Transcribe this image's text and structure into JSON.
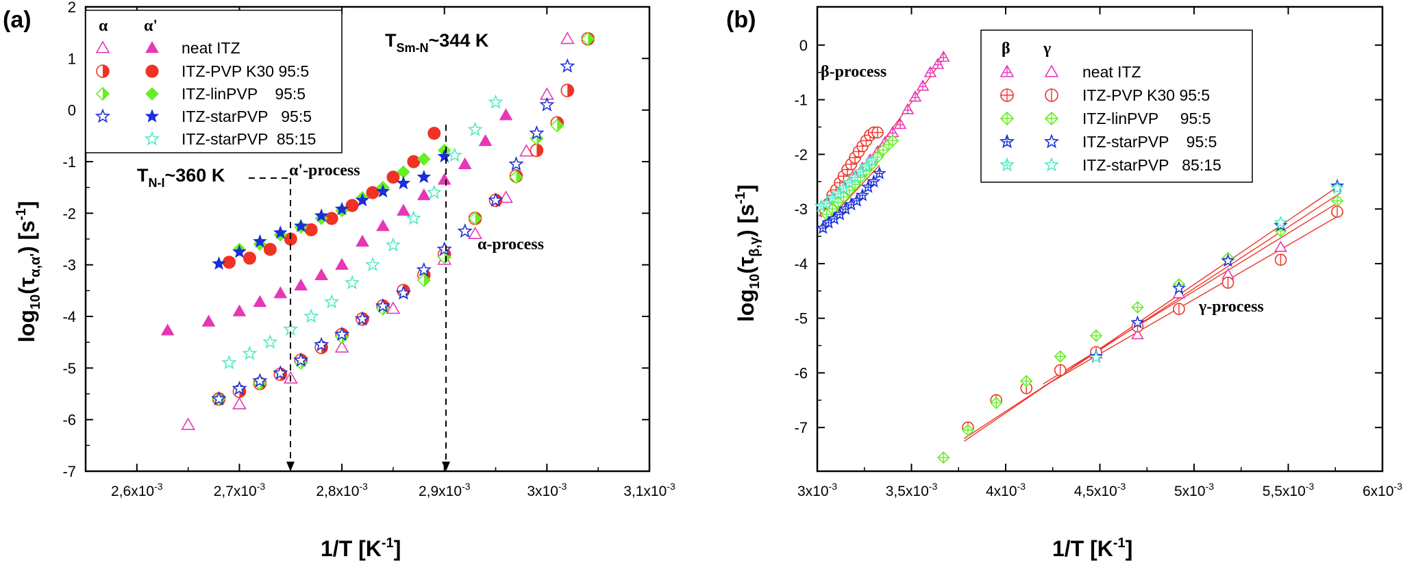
{
  "panel_a": {
    "label": "(a)",
    "xlabel": "1/T [K",
    "xlabel_sup": "-1",
    "xlabel_end": "]",
    "ylabel_pre": "log",
    "ylabel_sub10": "10",
    "ylabel_tau": "(τ",
    "ylabel_sub": "α,α'",
    "ylabel_end": ") [s",
    "ylabel_sup": "-1",
    "ylabel_close": "]",
    "xticks": [
      0.0026,
      0.0027,
      0.0028,
      0.0029,
      0.003,
      0.0031
    ],
    "xtick_labels": [
      "2,6x10",
      "2,7x10",
      "2,8x10",
      "2,9x10",
      "3x10",
      "3,1x10"
    ],
    "xtick_exp": "-3",
    "yticks": [
      -7,
      -6,
      -5,
      -4,
      -3,
      -2,
      -1,
      0,
      1,
      2
    ],
    "legend": {
      "head_alpha": "α",
      "head_alphap": "α'",
      "rows": [
        {
          "name": "neat ITZ",
          "color": "#e637b6"
        },
        {
          "name": "ITZ-PVP K30 95:5",
          "color": "#ee3324"
        },
        {
          "name": "ITZ-linPVP    95:5",
          "color": "#66ee22"
        },
        {
          "name": "ITZ-starPVP   95:5",
          "color": "#1a2fd6"
        },
        {
          "name": "ITZ-starPVP  85:15",
          "color": "#55e8c4"
        }
      ]
    },
    "annotations": {
      "t_smn_pre": "T",
      "t_smn_sub": "Sm-N",
      "t_smn_post": "~344 K",
      "t_ni_pre": "T",
      "t_ni_sub": "N-I",
      "t_ni_post": "~360 K",
      "alpha_prime_process": "α'-process",
      "alpha_process": "α-process"
    }
  },
  "panel_b": {
    "label": "(b)",
    "xlabel": "1/T [K",
    "xlabel_sup": "-1",
    "xlabel_end": "]",
    "ylabel_pre": "log",
    "ylabel_sub10": "10",
    "ylabel_tau": "(τ",
    "ylabel_sub": "β,γ",
    "ylabel_end": ") [s",
    "ylabel_sup": "-1",
    "ylabel_close": "]",
    "xticks": [
      0.003,
      0.0035,
      0.004,
      0.0045,
      0.005,
      0.0055,
      0.006
    ],
    "xtick_labels": [
      "3x10",
      "3,5x10",
      "4x10",
      "4,5x10",
      "5x10",
      "5,5x10",
      "6x10"
    ],
    "xtick_exp": "-3",
    "yticks": [
      -7,
      -6,
      -5,
      -4,
      -3,
      -2,
      -1,
      0
    ],
    "legend": {
      "head_beta": "β",
      "head_gamma": "γ",
      "rows": [
        {
          "name": "neat ITZ",
          "color": "#e637b6"
        },
        {
          "name": "ITZ-PVP K30 95:5",
          "color": "#ee3324"
        },
        {
          "name": "ITZ-linPVP     95:5",
          "color": "#66ee22"
        },
        {
          "name": "ITZ-starPVP    95:5",
          "color": "#1a2fd6"
        },
        {
          "name": "ITZ-starPVP   85:15",
          "color": "#55e8c4"
        }
      ]
    },
    "annotations": {
      "beta_process": "β-process",
      "gamma_process": "γ-process"
    }
  },
  "chart_data": [
    {
      "type": "scatter",
      "title": "(a)",
      "xlabel": "1/T [K-1]",
      "ylabel": "log10(τα,α') [s-1]",
      "xlim": [
        0.00255,
        0.0031
      ],
      "ylim": [
        -7,
        2
      ],
      "series": [
        {
          "name": "neat ITZ α'",
          "process": "alpha_prime",
          "marker": "triangle-filled",
          "color": "#e637b6",
          "x": [
            0.00263,
            0.00267,
            0.0027,
            0.00272,
            0.00274,
            0.00276,
            0.00278,
            0.0028,
            0.00282,
            0.00284,
            0.00286,
            0.00288,
            0.0029,
            0.00292,
            0.00294,
            0.00296
          ],
          "y": [
            -4.27,
            -4.1,
            -3.9,
            -3.72,
            -3.55,
            -3.4,
            -3.2,
            -3.0,
            -2.55,
            -2.25,
            -1.95,
            -1.65,
            -1.35,
            -1.05,
            -0.6,
            -0.1
          ]
        },
        {
          "name": "ITZ-PVP K30 95:5 α'",
          "process": "alpha_prime",
          "marker": "circle-filled",
          "color": "#ee3324",
          "x": [
            0.00269,
            0.00271,
            0.00273,
            0.00275,
            0.00277,
            0.00279,
            0.00281,
            0.00283,
            0.00285,
            0.00287,
            0.00289
          ],
          "y": [
            -2.95,
            -2.87,
            -2.7,
            -2.5,
            -2.32,
            -2.1,
            -1.85,
            -1.6,
            -1.3,
            -1.0,
            -0.45
          ]
        },
        {
          "name": "ITZ-linPVP 95:5 α'",
          "process": "alpha_prime",
          "marker": "diamond-filled",
          "color": "#66ee22",
          "x": [
            0.0027,
            0.00272,
            0.00274,
            0.00276,
            0.00278,
            0.0028,
            0.00282,
            0.00284,
            0.00286,
            0.00288,
            0.0029
          ],
          "y": [
            -2.7,
            -2.6,
            -2.42,
            -2.27,
            -2.1,
            -1.95,
            -1.7,
            -1.5,
            -1.2,
            -0.95,
            -0.78
          ]
        },
        {
          "name": "ITZ-starPVP 95:5 α'",
          "process": "alpha_prime",
          "marker": "star-filled",
          "color": "#1a2fd6",
          "x": [
            0.00268,
            0.0027,
            0.00272,
            0.00274,
            0.00276,
            0.00278,
            0.0028,
            0.00282,
            0.00284,
            0.00286,
            0.00288,
            0.0029
          ],
          "y": [
            -2.98,
            -2.75,
            -2.55,
            -2.38,
            -2.25,
            -2.05,
            -1.92,
            -1.75,
            -1.58,
            -1.42,
            -1.3,
            -0.9
          ]
        },
        {
          "name": "ITZ-starPVP 85:15 α",
          "process": "alpha",
          "marker": "star-open",
          "color": "#55e8c4",
          "x": [
            0.00269,
            0.00271,
            0.00273,
            0.00275,
            0.00277,
            0.00279,
            0.00281,
            0.00283,
            0.00285,
            0.00287,
            0.00289,
            0.00291,
            0.00293,
            0.00295
          ],
          "y": [
            -4.9,
            -4.72,
            -4.5,
            -4.25,
            -4.0,
            -3.72,
            -3.35,
            -3.0,
            -2.62,
            -2.1,
            -1.6,
            -0.88,
            -0.38,
            0.15
          ]
        },
        {
          "name": "neat ITZ α",
          "process": "alpha",
          "marker": "triangle-open",
          "color": "#e637b6",
          "x": [
            0.00265,
            0.0027,
            0.00275,
            0.0028,
            0.00285,
            0.0029,
            0.00293,
            0.00296,
            0.00298,
            0.003,
            0.00302
          ],
          "y": [
            -6.1,
            -5.7,
            -5.2,
            -4.6,
            -3.85,
            -2.9,
            -2.4,
            -1.7,
            -0.8,
            0.3,
            1.38
          ]
        },
        {
          "name": "ITZ-PVP K30 95:5 α",
          "process": "alpha",
          "marker": "circle-half",
          "color": "#ee3324",
          "x": [
            0.00268,
            0.0027,
            0.00272,
            0.00274,
            0.00276,
            0.00278,
            0.0028,
            0.00282,
            0.00284,
            0.00286,
            0.00288,
            0.0029,
            0.00293,
            0.00295,
            0.00297,
            0.00299,
            0.00301,
            0.00302,
            0.00304
          ],
          "y": [
            -5.6,
            -5.45,
            -5.3,
            -5.12,
            -4.85,
            -4.6,
            -4.35,
            -4.05,
            -3.8,
            -3.5,
            -3.2,
            -2.8,
            -2.1,
            -1.75,
            -1.28,
            -0.78,
            -0.25,
            0.38,
            1.38
          ]
        },
        {
          "name": "ITZ-linPVP 95:5 α",
          "process": "alpha",
          "marker": "diamond-half",
          "color": "#66ee22",
          "x": [
            0.00268,
            0.00272,
            0.00276,
            0.0028,
            0.00284,
            0.00288,
            0.0029,
            0.00293,
            0.00297,
            0.00299,
            0.00301,
            0.00304
          ],
          "y": [
            -5.6,
            -5.3,
            -4.9,
            -4.4,
            -3.85,
            -3.3,
            -2.85,
            -2.1,
            -1.3,
            -0.55,
            -0.3,
            1.38
          ]
        },
        {
          "name": "ITZ-starPVP 95:5 α",
          "process": "alpha",
          "marker": "star-open",
          "color": "#1a2fd6",
          "x": [
            0.00268,
            0.0027,
            0.00272,
            0.00274,
            0.00276,
            0.00278,
            0.0028,
            0.00282,
            0.00284,
            0.00286,
            0.00288,
            0.0029,
            0.00292,
            0.00295,
            0.00297,
            0.00299,
            0.003,
            0.00302
          ],
          "y": [
            -5.6,
            -5.4,
            -5.25,
            -5.1,
            -4.85,
            -4.55,
            -4.35,
            -4.05,
            -3.8,
            -3.55,
            -3.1,
            -2.7,
            -2.35,
            -1.75,
            -1.05,
            -0.45,
            0.1,
            0.85
          ]
        }
      ],
      "annotations": [
        {
          "text": "TSm-N~344 K",
          "x": 0.0029,
          "kind": "vertical-dashed-arrow"
        },
        {
          "text": "TN-I~360 K",
          "x": 0.00275,
          "kind": "vertical-dashed-arrow"
        },
        {
          "text": "α'-process"
        },
        {
          "text": "α-process"
        }
      ]
    },
    {
      "type": "scatter",
      "title": "(b)",
      "xlabel": "1/T [K-1]",
      "ylabel": "log10(τβ,γ) [s-1]",
      "xlim": [
        0.003,
        0.006
      ],
      "ylim": [
        -7.8,
        0.7
      ],
      "series": [
        {
          "name": "neat ITZ β",
          "process": "beta",
          "marker": "triangle-cross",
          "color": "#e637b6",
          "x": [
            0.00304,
            0.00307,
            0.0031,
            0.00313,
            0.00316,
            0.0032,
            0.00324,
            0.00328,
            0.00332,
            0.00336,
            0.0034,
            0.00344,
            0.00348,
            0.00352,
            0.00356,
            0.0036,
            0.00364,
            0.00367
          ],
          "y": [
            -3.05,
            -2.95,
            -2.8,
            -2.7,
            -2.55,
            -2.4,
            -2.25,
            -2.1,
            -1.95,
            -1.78,
            -1.6,
            -1.45,
            -1.18,
            -0.95,
            -0.75,
            -0.5,
            -0.35,
            -0.22
          ]
        },
        {
          "name": "ITZ-PVP K30 95:5 β",
          "process": "beta",
          "marker": "circle-cross",
          "color": "#ee3324",
          "x": [
            0.00304,
            0.00306,
            0.00308,
            0.0031,
            0.00312,
            0.00314,
            0.00316,
            0.00318,
            0.0032,
            0.00322,
            0.00324,
            0.00326,
            0.00328,
            0.0033,
            0.00332
          ],
          "y": [
            -3.0,
            -2.9,
            -2.75,
            -2.65,
            -2.52,
            -2.4,
            -2.28,
            -2.18,
            -2.06,
            -1.95,
            -1.85,
            -1.75,
            -1.65,
            -1.6,
            -1.6
          ]
        },
        {
          "name": "ITZ-linPVP 95:5 β",
          "process": "beta",
          "marker": "diamond-cross",
          "color": "#66ee22",
          "x": [
            0.00305,
            0.00308,
            0.00311,
            0.00314,
            0.00317,
            0.0032,
            0.00323,
            0.00326,
            0.00329,
            0.00332,
            0.00335,
            0.00338,
            0.0034
          ],
          "y": [
            -3.1,
            -3.0,
            -2.88,
            -2.78,
            -2.66,
            -2.55,
            -2.42,
            -2.3,
            -2.18,
            -2.05,
            -1.92,
            -1.82,
            -1.75
          ]
        },
        {
          "name": "ITZ-starPVP 95:5 β",
          "process": "beta",
          "marker": "star-cross",
          "color": "#1a2fd6",
          "x": [
            0.00303,
            0.00306,
            0.00309,
            0.00312,
            0.00315,
            0.00318,
            0.00321,
            0.00324,
            0.00327,
            0.0033,
            0.00333
          ],
          "y": [
            -3.35,
            -3.25,
            -3.18,
            -3.1,
            -3.0,
            -2.92,
            -2.85,
            -2.75,
            -2.6,
            -2.5,
            -2.35
          ]
        },
        {
          "name": "ITZ-starPVP 85:15 β",
          "process": "beta",
          "marker": "star-cross",
          "color": "#55e8c4",
          "x": [
            0.00302,
            0.00305,
            0.00308,
            0.00311,
            0.00314,
            0.00317,
            0.0032,
            0.00323,
            0.00326,
            0.00329
          ],
          "y": [
            -2.95,
            -2.9,
            -2.8,
            -2.72,
            -2.62,
            -2.52,
            -2.42,
            -2.32,
            -2.22,
            -2.12
          ]
        },
        {
          "name": "neat ITZ γ",
          "process": "gamma",
          "marker": "triangle-open",
          "color": "#e637b6",
          "x": [
            0.00448,
            0.0047,
            0.00492,
            0.00518,
            0.00546,
            0.00576
          ],
          "y": [
            -5.65,
            -5.3,
            -4.55,
            -4.2,
            -3.7,
            -3.0
          ]
        },
        {
          "name": "ITZ-PVP K30 95:5 γ",
          "process": "gamma",
          "marker": "circle-open",
          "color": "#ee3324",
          "x": [
            0.0038,
            0.00395,
            0.00411,
            0.00429,
            0.00448,
            0.0047,
            0.00492,
            0.00518,
            0.00546,
            0.00576
          ],
          "y": [
            -7.0,
            -6.5,
            -6.28,
            -5.95,
            -5.62,
            -5.15,
            -4.83,
            -4.35,
            -3.93,
            -3.05
          ]
        },
        {
          "name": "ITZ-linPVP 95:5 γ",
          "process": "gamma",
          "marker": "diamond-open",
          "color": "#66ee22",
          "x": [
            0.00367,
            0.0038,
            0.00395,
            0.00411,
            0.00429,
            0.00448,
            0.0047,
            0.00492,
            0.00518,
            0.00546,
            0.00576
          ],
          "y": [
            -7.55,
            -7.05,
            -6.55,
            -6.15,
            -5.7,
            -5.32,
            -4.8,
            -4.38,
            -3.9,
            -3.4,
            -2.85
          ]
        },
        {
          "name": "ITZ-starPVP 95:5 γ",
          "process": "gamma",
          "marker": "star-open",
          "color": "#1a2fd6",
          "x": [
            0.00448,
            0.0047,
            0.00492,
            0.00518,
            0.00546,
            0.00576
          ],
          "y": [
            -5.7,
            -5.08,
            -4.45,
            -3.95,
            -3.3,
            -2.58
          ]
        },
        {
          "name": "ITZ-starPVP 85:15 γ",
          "process": "gamma",
          "marker": "star-open",
          "color": "#55e8c4",
          "x": [
            0.00448,
            0.00546,
            0.00576
          ],
          "y": [
            -5.72,
            -3.25,
            -2.62
          ]
        }
      ],
      "fit_lines": [
        {
          "color": "#ee3324",
          "x": [
            0.00378,
            0.00578
          ],
          "y": [
            -7.25,
            -2.55
          ]
        },
        {
          "color": "#ee3324",
          "x": [
            0.00378,
            0.00578
          ],
          "y": [
            -7.2,
            -2.7
          ]
        },
        {
          "color": "#ee3324",
          "x": [
            0.0042,
            0.00578
          ],
          "y": [
            -6.2,
            -2.85
          ]
        },
        {
          "color": "#ee3324",
          "x": [
            0.0042,
            0.00578
          ],
          "y": [
            -6.25,
            -3.1
          ]
        },
        {
          "color": "#ee3324",
          "x": [
            0.00302,
            0.00367
          ],
          "y": [
            -3.3,
            -0.25
          ]
        },
        {
          "color": "#ee3324",
          "x": [
            0.00302,
            0.0034
          ],
          "y": [
            -3.15,
            -1.65
          ]
        },
        {
          "color": "#ee3324",
          "x": [
            0.00302,
            0.00333
          ],
          "y": [
            -3.35,
            -2.2
          ]
        }
      ],
      "annotations": [
        {
          "text": "β-process"
        },
        {
          "text": "γ-process"
        }
      ]
    }
  ]
}
